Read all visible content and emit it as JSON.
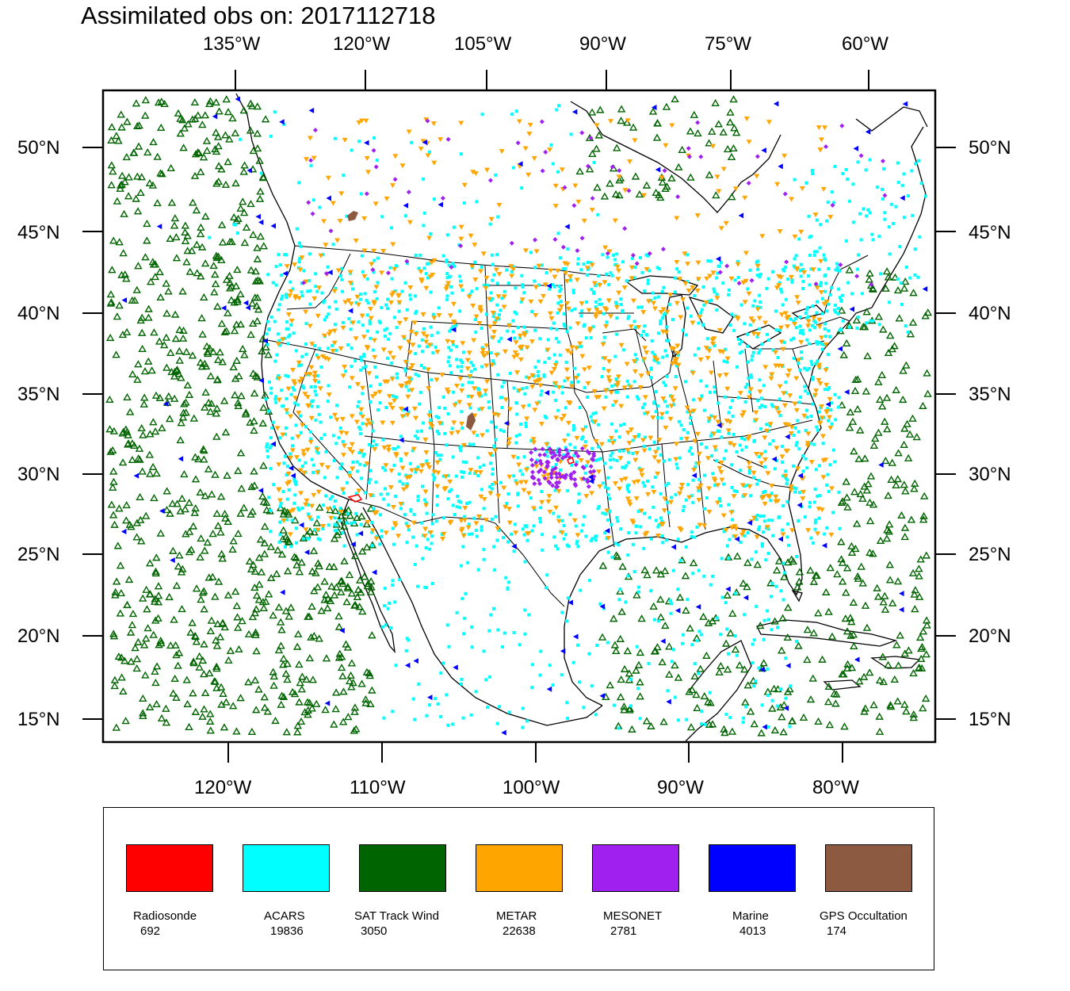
{
  "title": "Assimilated obs on: 2017112718",
  "top_axis_labels": [
    "135°W",
    "120°W",
    "105°W",
    "90°W",
    "75°W",
    "60°W"
  ],
  "bottom_axis_labels": [
    "120°W",
    "110°W",
    "100°W",
    "90°W",
    "80°W"
  ],
  "lat_labels": [
    "50°N",
    "45°N",
    "40°N",
    "35°N",
    "30°N",
    "25°N",
    "20°N",
    "15°N"
  ],
  "legend": [
    {
      "name": "Radiosonde",
      "count": "692",
      "color": "#ff0000"
    },
    {
      "name": "ACARS",
      "count": "19836",
      "color": "#00ffff"
    },
    {
      "name": "SAT Track Wind",
      "count": "3050",
      "color": "#006400"
    },
    {
      "name": "METAR",
      "count": "22638",
      "color": "#ffa500"
    },
    {
      "name": "MESONET",
      "count": "2781",
      "color": "#a020f0"
    },
    {
      "name": "Marine",
      "count": "4013",
      "color": "#0000ff"
    },
    {
      "name": "GPS Occultation",
      "count": "174",
      "color": "#8b5a40"
    }
  ]
}
